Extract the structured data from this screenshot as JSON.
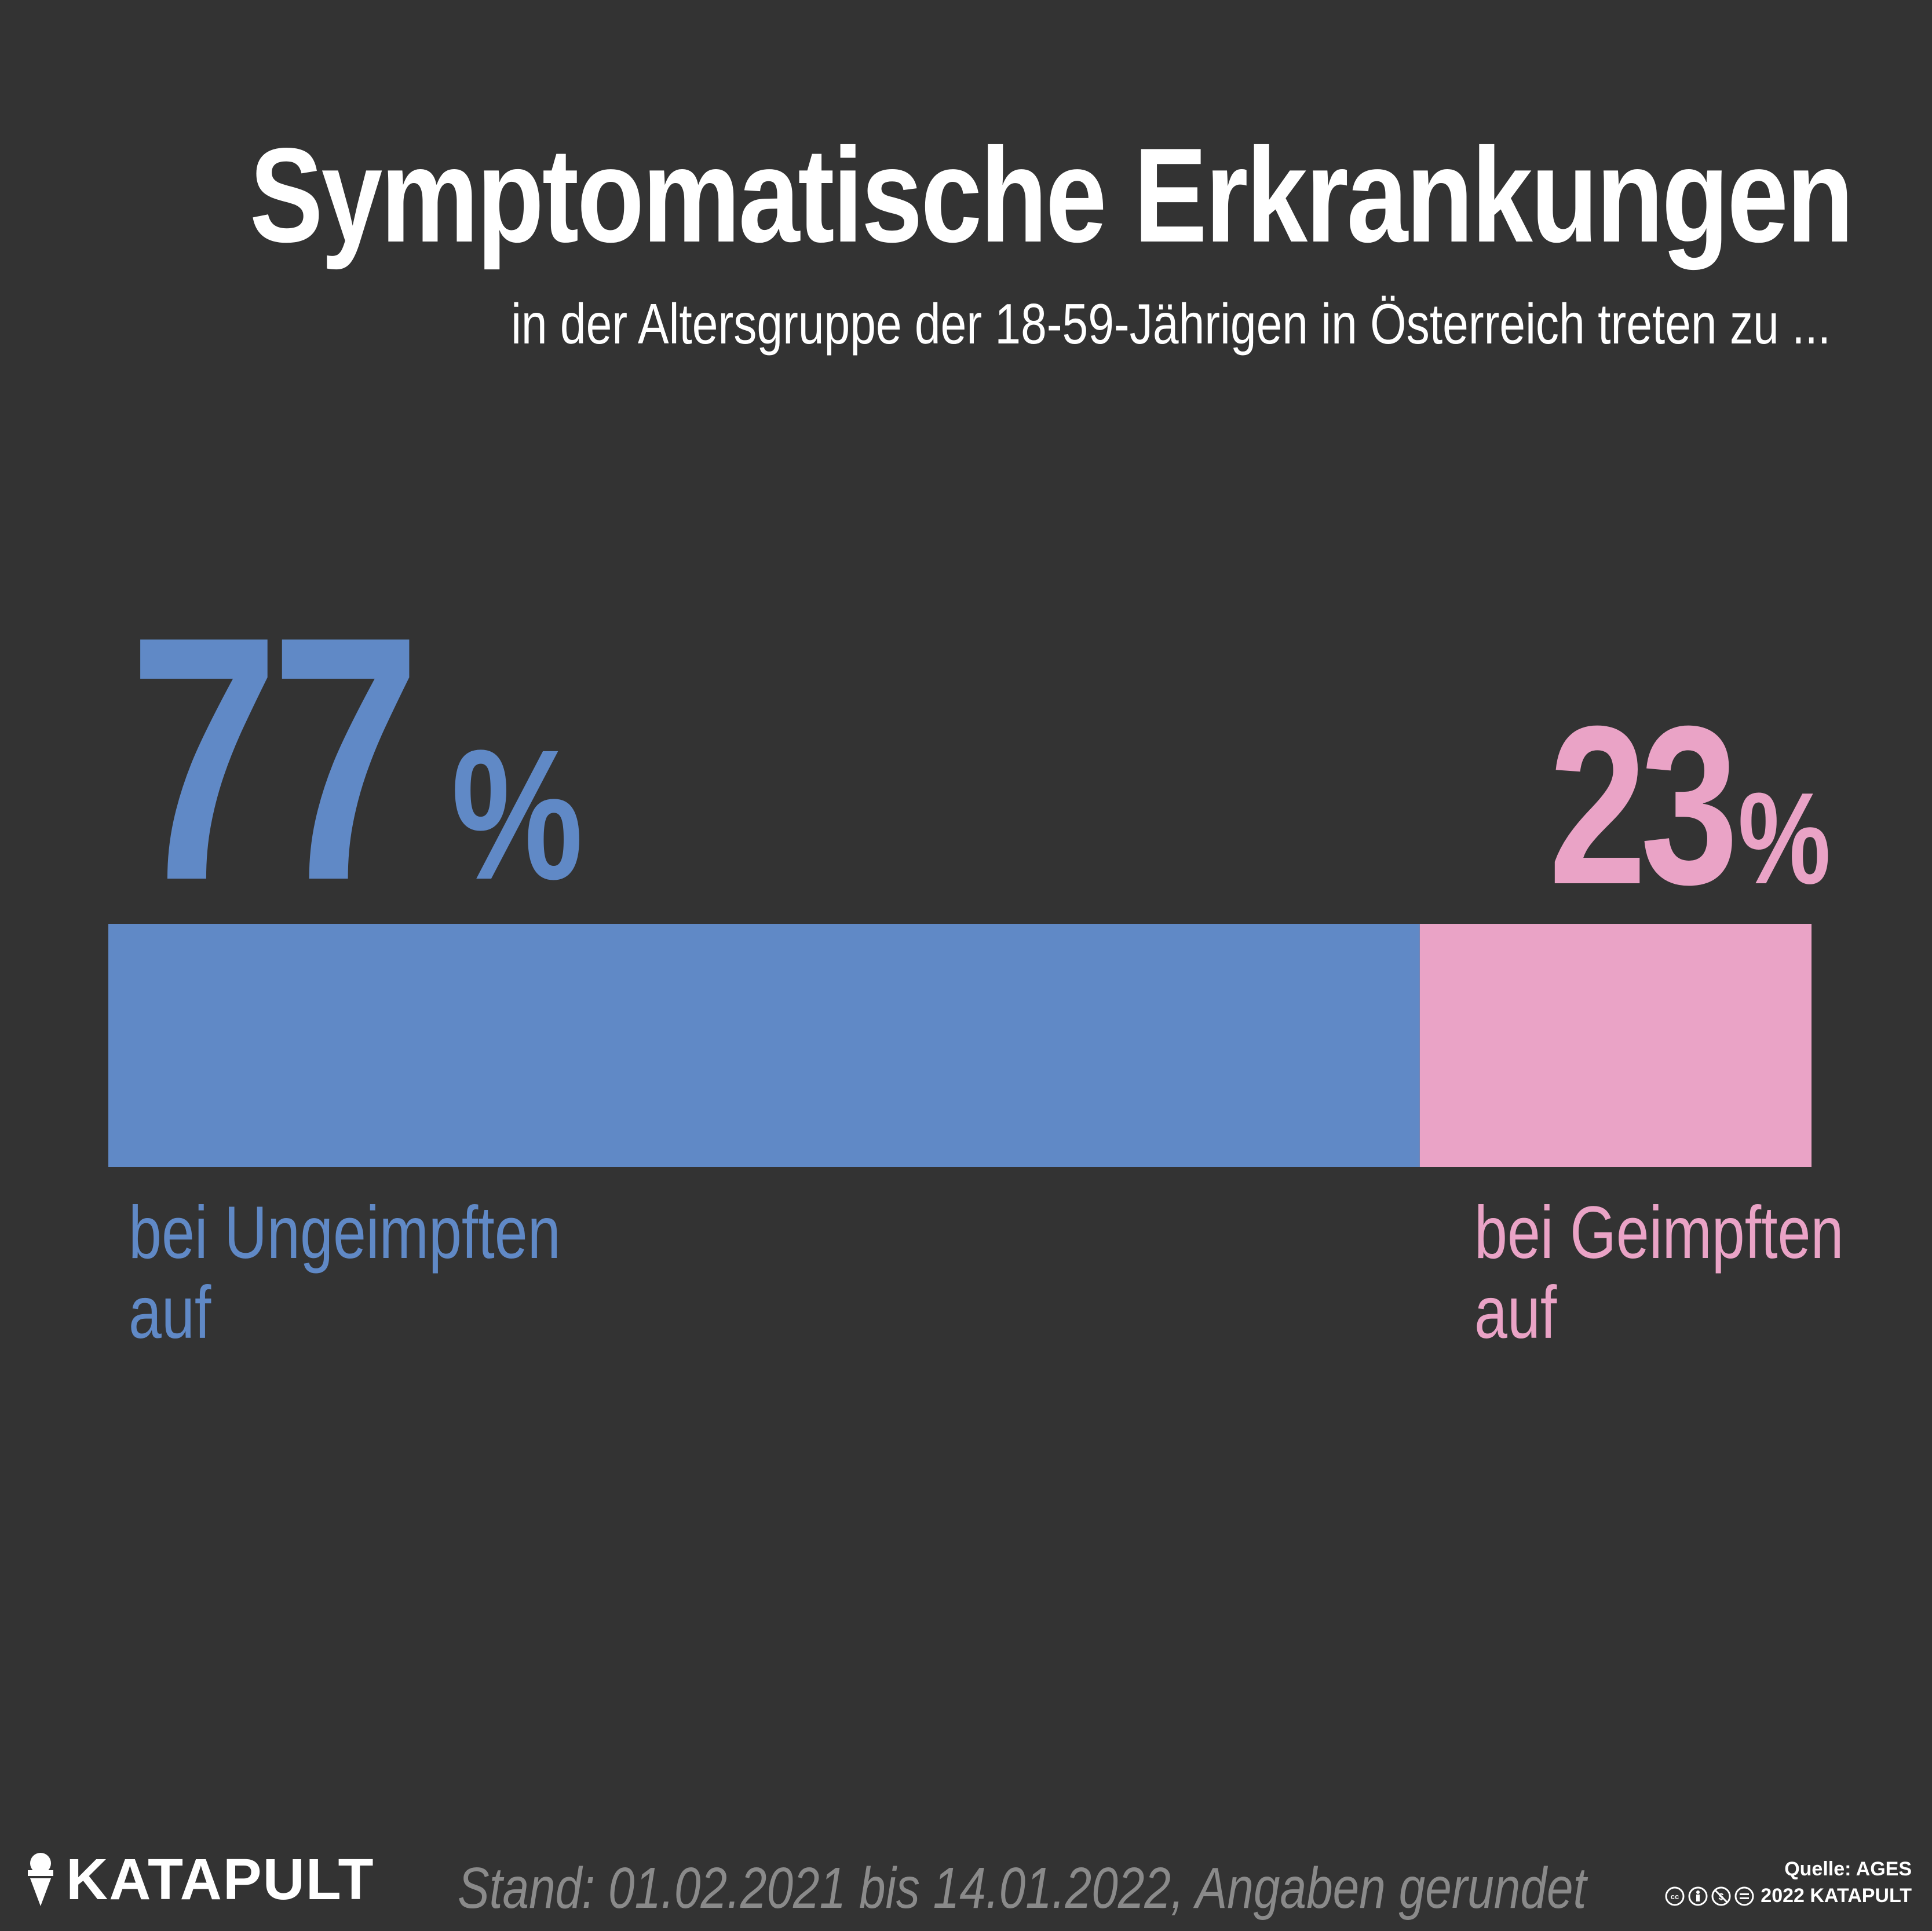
{
  "title": "Symptomatische Erkrankungen",
  "subtitle": "in der Altersgruppe der 18-59-Jährigen in Österreich treten zu ...",
  "footer": {
    "logo_text": "KATAPULT",
    "note": "Stand: 01.02.2021 bis 14.01.2022, Angaben gerundet",
    "source": "Quelle: AGES",
    "copyright": "2022 KATAPULT",
    "license_icons": [
      "cc-icon",
      "by-icon",
      "nc-icon",
      "nd-icon"
    ]
  },
  "colors": {
    "background": "#333333",
    "unvaccinated": "#6089c6",
    "vaccinated": "#eaa3c6",
    "note": "#8a8a8a"
  },
  "chart_data": {
    "type": "bar",
    "orientation": "horizontal-stacked",
    "unit": "%",
    "segments": [
      {
        "value": 77,
        "value_text": "77",
        "unit_text": "%",
        "label_line1": "bei Ungeimpften",
        "label_line2": "auf",
        "color": "#6089c6"
      },
      {
        "value": 23,
        "value_text": "23",
        "unit_text": "%",
        "label_line1": "bei Geimpften",
        "label_line2": "auf",
        "color": "#eaa3c6"
      }
    ]
  }
}
